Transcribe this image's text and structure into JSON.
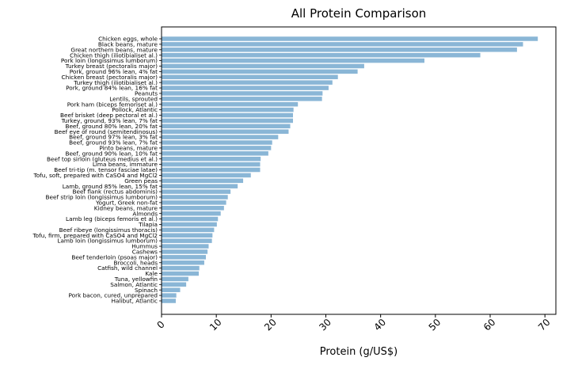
{
  "chart_data": {
    "type": "bar",
    "orientation": "horizontal",
    "title": "All Protein Comparison",
    "xlabel": "Protein (g/US$)",
    "ylabel": "",
    "xlim": [
      0,
      72
    ],
    "xticks": [
      0,
      10,
      20,
      30,
      40,
      50,
      60,
      70
    ],
    "grid": false,
    "bar_color": "#8ab6d6",
    "categories": [
      "Chicken eggs, whole",
      "Black beans, mature",
      "Great northern beans, mature",
      "Chicken thigh (iliotibialiset al.)",
      "Pork loin (longissimus lumborum)",
      "Turkey breast (pectoralis major)",
      "Pork, ground 96% lean, 4% fat",
      "Chicken breast (pectoralis major)",
      "Turkey thigh (iliotibialiset al.)",
      "Pork, ground 84% lean, 16% fat",
      "Peanuts",
      "Lentils, sprouted",
      "Pork ham (biceps femoriset al.)",
      "Pollock, Atlantic",
      "Beef brisket (deep pectoral et al.)",
      "Turkey, ground, 93% lean, 7% fat",
      "Beef, ground 80% lean, 20% fat",
      "Beef eye of round (semitendinosus)",
      "Beef, ground 97% lean, 3% fat",
      "Beef, ground 93% lean, 7% fat",
      "Pinto beans, mature",
      "Beef, ground 90% lean, 10% fat",
      "Beef top sirloin (gluteus medius et al.)",
      "Lima beans, immature",
      "Beef tri-tip (m. tensor fasciae latae)",
      "Tofu, soft, prepared with CaSO4 and MgCl2",
      "Green peas",
      "Lamb, ground 85% lean, 15% fat",
      "Beef flank (rectus abdominis)",
      "Beef strip loin (longissimus lumborum)",
      "Yogurt, Greek non-fat",
      "Kidney beans, mature",
      "Almonds",
      "Lamb leg (biceps femoris et al.)",
      "Tilapia",
      "Beef ribeye (longissimus thoracis)",
      "Tofu, firm, prepared with CaSO4 and MgCl2",
      "Lamb loin (longissimus lumborum)",
      "Hummus",
      "Cashews",
      "Beef tenderloin (psoas major)",
      "Broccoli, heads",
      "Catfish, wild channel",
      "Kale",
      "Tuna, yellowfin",
      "Salmon, Atlantic",
      "Spinach",
      "Pork bacon, cured, unprepared",
      "Halibut, Atlantic"
    ],
    "values": [
      68.7,
      66.0,
      64.9,
      58.2,
      48.0,
      37.0,
      35.8,
      32.2,
      31.2,
      30.5,
      29.4,
      29.3,
      24.9,
      24.1,
      24.0,
      24.0,
      23.5,
      23.2,
      21.3,
      20.2,
      20.0,
      19.5,
      18.1,
      18.0,
      18.0,
      16.3,
      14.9,
      13.9,
      12.6,
      12.1,
      11.8,
      11.4,
      10.8,
      10.3,
      10.1,
      9.6,
      9.3,
      9.2,
      8.6,
      8.4,
      8.1,
      7.8,
      6.9,
      6.8,
      4.9,
      4.5,
      3.4,
      2.7,
      2.6
    ]
  }
}
